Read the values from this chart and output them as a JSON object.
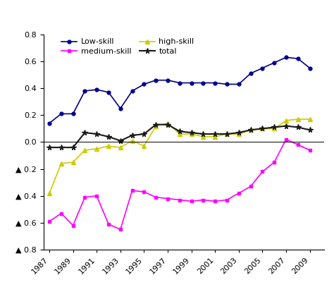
{
  "years": [
    1987,
    1988,
    1989,
    1990,
    1991,
    1992,
    1993,
    1994,
    1995,
    1996,
    1997,
    1998,
    1999,
    2000,
    2001,
    2002,
    2003,
    2004,
    2005,
    2006,
    2007,
    2008,
    2009
  ],
  "low_skill": [
    0.14,
    0.21,
    0.21,
    0.38,
    0.39,
    0.37,
    0.25,
    0.38,
    0.43,
    0.46,
    0.46,
    0.44,
    0.44,
    0.44,
    0.44,
    0.43,
    0.43,
    0.51,
    0.55,
    0.59,
    0.63,
    0.62,
    0.55
  ],
  "medium_skill": [
    -0.59,
    -0.53,
    -0.62,
    -0.41,
    -0.4,
    -0.61,
    -0.65,
    -0.36,
    -0.37,
    -0.41,
    -0.42,
    -0.43,
    -0.44,
    -0.43,
    -0.44,
    -0.43,
    -0.38,
    -0.33,
    -0.22,
    -0.15,
    0.02,
    -0.02,
    -0.06
  ],
  "high_skill": [
    -0.38,
    -0.16,
    -0.15,
    -0.06,
    -0.05,
    -0.03,
    -0.04,
    0.01,
    -0.03,
    0.12,
    0.14,
    0.06,
    0.06,
    0.04,
    0.04,
    0.06,
    0.06,
    0.09,
    0.1,
    0.1,
    0.16,
    0.17,
    0.17
  ],
  "total": [
    -0.04,
    -0.04,
    -0.04,
    0.07,
    0.06,
    0.04,
    0.01,
    0.05,
    0.06,
    0.13,
    0.13,
    0.08,
    0.07,
    0.06,
    0.06,
    0.06,
    0.07,
    0.09,
    0.1,
    0.11,
    0.12,
    0.11,
    0.09
  ],
  "low_skill_color": "#00008B",
  "medium_skill_color": "#FF00FF",
  "high_skill_color": "#CCCC00",
  "total_color": "#1a1a1a",
  "ylim": [
    -0.8,
    0.8
  ],
  "yticks": [
    -0.8,
    -0.6,
    -0.4,
    -0.2,
    0.0,
    0.2,
    0.4,
    0.6,
    0.8
  ],
  "xtick_positions": [
    1987,
    1989,
    1991,
    1993,
    1995,
    1997,
    1999,
    2001,
    2003,
    2005,
    2007,
    2009
  ]
}
